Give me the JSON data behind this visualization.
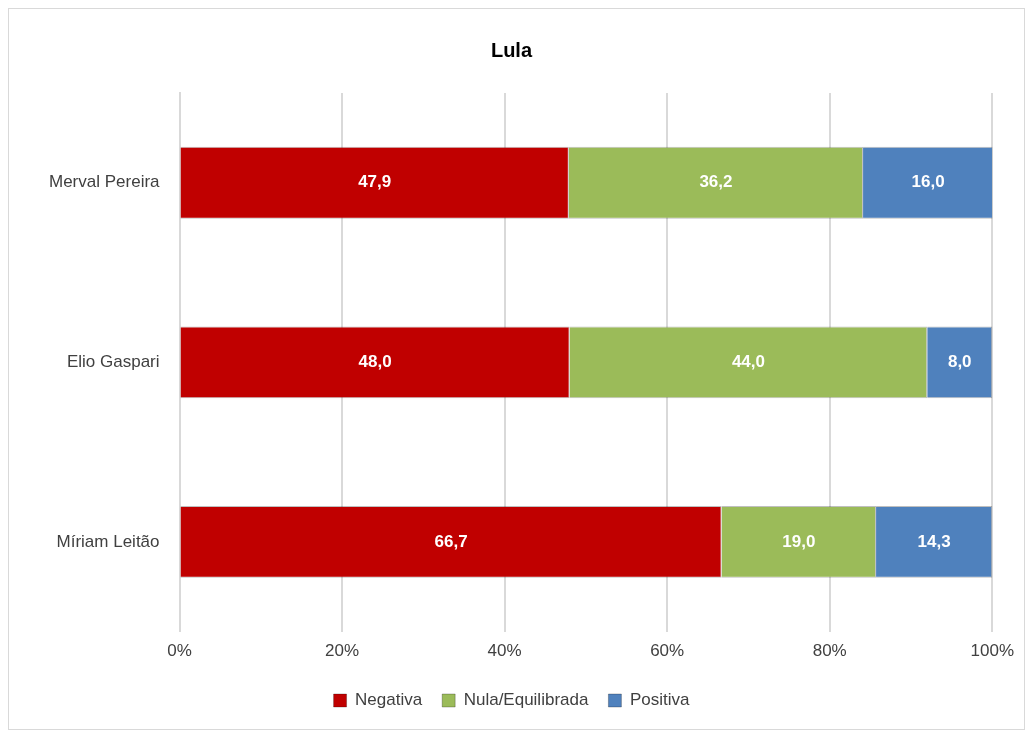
{
  "chart_data": {
    "type": "bar",
    "title": "Lula",
    "orientation": "horizontal",
    "stacked": true,
    "categories": [
      "Merval Pereira",
      "Elio Gaspari",
      "Míriam Leitão"
    ],
    "series": [
      {
        "name": "Negativa",
        "color": "#c00000",
        "values": [
          47.9,
          48.0,
          66.7
        ],
        "value_labels": [
          "47,9",
          "48,0",
          "66,7"
        ]
      },
      {
        "name": "Nula/Equilibrada",
        "color": "#9bbb59",
        "values": [
          36.2,
          44.0,
          19.0
        ],
        "value_labels": [
          "36,2",
          "44,0",
          "19,0"
        ]
      },
      {
        "name": "Positiva",
        "color": "#4f81bd",
        "values": [
          16.0,
          8.0,
          14.3
        ],
        "value_labels": [
          "16,0",
          "8,0",
          "14,3"
        ]
      }
    ],
    "xlim": [
      0,
      100
    ],
    "xticks": [
      {
        "value": 0,
        "label": "0%"
      },
      {
        "value": 20,
        "label": "20%"
      },
      {
        "value": 40,
        "label": "40%"
      },
      {
        "value": 60,
        "label": "60%"
      },
      {
        "value": 80,
        "label": "80%"
      },
      {
        "value": 100,
        "label": "100%"
      }
    ],
    "grid": "x",
    "legend": "bottom"
  }
}
